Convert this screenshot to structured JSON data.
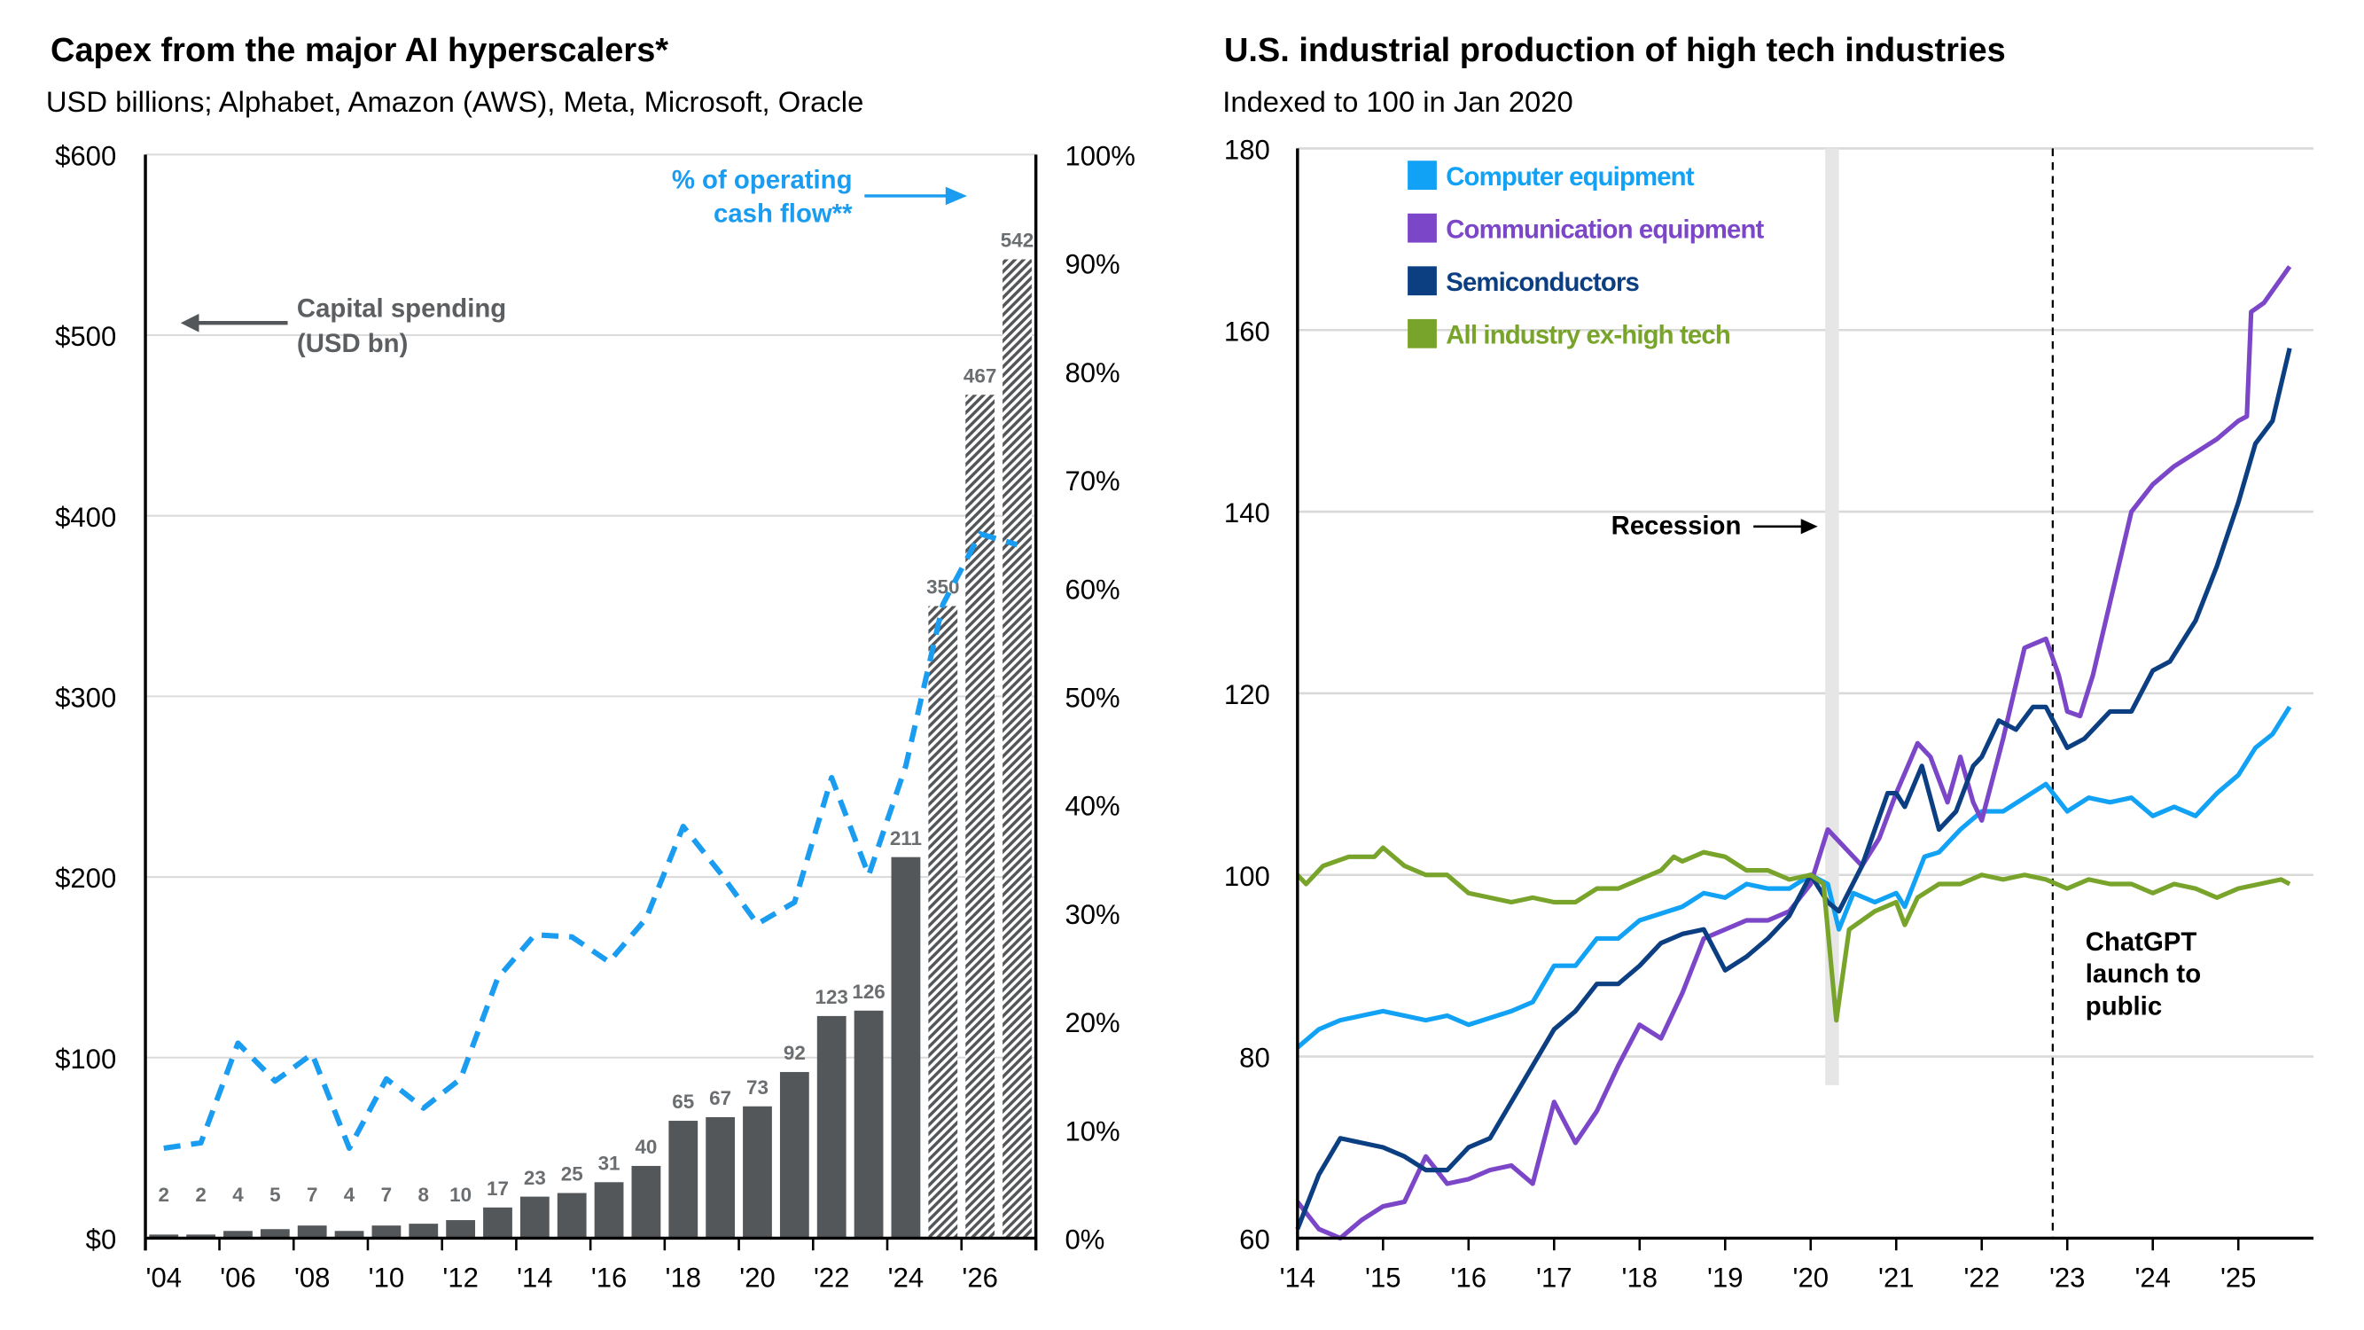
{
  "chart_data": [
    {
      "type": "bar",
      "title": "Capex from the major AI hyperscalers*",
      "subtitle": "USD billions; Alphabet, Amazon (AWS), Meta, Microsoft, Oracle",
      "categories": [
        2004,
        2005,
        2006,
        2007,
        2008,
        2009,
        2010,
        2011,
        2012,
        2013,
        2014,
        2015,
        2016,
        2017,
        2018,
        2019,
        2020,
        2021,
        2022,
        2023,
        2024,
        2025,
        2026,
        2027
      ],
      "x_tick_labels": [
        "'04",
        "'06",
        "'08",
        "'10",
        "'12",
        "'14",
        "'16",
        "'18",
        "'20",
        "'22",
        "'24",
        "'26"
      ],
      "series": [
        {
          "name": "Capital spending (USD bn)",
          "axis": "left",
          "type": "bar",
          "values": [
            2,
            2,
            4,
            5,
            7,
            4,
            7,
            8,
            10,
            17,
            23,
            25,
            31,
            40,
            65,
            67,
            73,
            92,
            123,
            126,
            211,
            350,
            467,
            542
          ],
          "hatched_from": 2025,
          "color": "#54575a"
        },
        {
          "name": "% of operating cash flow**",
          "axis": "right",
          "type": "line",
          "style": "dashed",
          "color": "#1a9cf0",
          "values": [
            8.3,
            8.8,
            18,
            14.5,
            17,
            8.3,
            14.7,
            12,
            14.7,
            24,
            28,
            27.8,
            25.5,
            29.5,
            38,
            33.7,
            29,
            31,
            42.5,
            33.5,
            43.6,
            58.5,
            65,
            64
          ]
        }
      ],
      "ylim_left": [
        0,
        600
      ],
      "y_ticks_left": [
        "$0",
        "$100",
        "$200",
        "$300",
        "$400",
        "$500",
        "$600"
      ],
      "ylim_right": [
        0,
        100
      ],
      "y_ticks_right": [
        "0%",
        "10%",
        "20%",
        "30%",
        "40%",
        "50%",
        "60%",
        "70%",
        "80%",
        "90%",
        "100%"
      ],
      "annotations": {
        "left_arrow_label_1": "Capital spending",
        "left_arrow_label_2": "(USD bn)",
        "right_arrow_label_1": "% of operating",
        "right_arrow_label_2": "cash flow**"
      },
      "grid": "horizontal"
    },
    {
      "type": "line",
      "title": "U.S. industrial production of high tech industries",
      "subtitle": "Indexed to 100 in Jan 2020",
      "ylim": [
        60,
        180
      ],
      "y_ticks": [
        "60",
        "80",
        "100",
        "120",
        "140",
        "160",
        "180"
      ],
      "x_range": [
        2014,
        2025.85
      ],
      "x_tick_labels": [
        "'14",
        "'15",
        "'16",
        "'17",
        "'18",
        "'19",
        "'20",
        "'21",
        "'22",
        "'23",
        "'24",
        "'25"
      ],
      "legend_placement": "top-left",
      "grid": "horizontal",
      "recession": [
        2020.17,
        2020.33
      ],
      "recession_label": "Recession",
      "event_line": 2022.83,
      "event_label": [
        "ChatGPT",
        "launch to",
        "public"
      ],
      "series": [
        {
          "name": "Computer equipment",
          "color": "#12a2f5",
          "x": [
            2014,
            2014.25,
            2014.5,
            2014.75,
            2015,
            2015.5,
            2015.75,
            2016,
            2016.5,
            2016.75,
            2017,
            2017.25,
            2017.5,
            2017.75,
            2018,
            2018.5,
            2018.75,
            2019,
            2019.25,
            2019.5,
            2019.75,
            2020,
            2020.2,
            2020.33,
            2020.5,
            2020.75,
            2021,
            2021.1,
            2021.33,
            2021.5,
            2021.75,
            2022,
            2022.25,
            2022.5,
            2022.75,
            2023,
            2023.25,
            2023.5,
            2023.75,
            2024,
            2024.25,
            2024.5,
            2024.75,
            2025,
            2025.2,
            2025.4,
            2025.6
          ],
          "y": [
            81,
            83,
            84,
            84.5,
            85,
            84,
            84.5,
            83.5,
            85,
            86,
            90,
            90,
            93,
            93,
            95,
            96.5,
            98,
            97.5,
            99,
            98.5,
            98.5,
            100,
            99,
            94,
            98,
            97,
            98,
            96.5,
            102,
            102.5,
            105,
            107,
            107,
            108.5,
            110,
            107,
            108.5,
            108,
            108.5,
            106.5,
            107.5,
            106.5,
            109,
            111,
            114,
            115.5,
            118.5
          ]
        },
        {
          "name": "Communication equipment",
          "color": "#7b46c8",
          "x": [
            2014,
            2014.25,
            2014.5,
            2014.75,
            2015,
            2015.25,
            2015.5,
            2015.75,
            2016,
            2016.25,
            2016.5,
            2016.75,
            2017,
            2017.25,
            2017.5,
            2017.75,
            2018,
            2018.25,
            2018.5,
            2018.75,
            2019,
            2019.25,
            2019.5,
            2019.75,
            2020,
            2020.2,
            2020.4,
            2020.6,
            2020.8,
            2021,
            2021.25,
            2021.4,
            2021.6,
            2021.75,
            2021.9,
            2022,
            2022.25,
            2022.5,
            2022.75,
            2022.9,
            2023,
            2023.15,
            2023.3,
            2023.5,
            2023.75,
            2024,
            2024.25,
            2024.5,
            2024.75,
            2025,
            2025.1,
            2025.15,
            2025.3,
            2025.6
          ],
          "y": [
            64,
            61,
            60,
            62,
            63.5,
            64,
            69,
            66,
            66.5,
            67.5,
            68,
            66,
            75,
            70.5,
            74,
            79,
            83.5,
            82,
            87,
            93,
            94,
            95,
            95,
            96,
            99,
            105,
            103,
            101,
            104,
            109,
            114.5,
            113,
            108,
            113,
            108,
            106,
            115,
            125,
            126,
            122,
            118,
            117.5,
            122,
            130,
            140,
            143,
            145,
            146.5,
            148,
            150,
            150.5,
            162,
            163,
            167
          ]
        },
        {
          "name": "Semiconductors",
          "color": "#0b3f82",
          "x": [
            2014,
            2014.25,
            2014.5,
            2014.75,
            2015,
            2015.25,
            2015.5,
            2015.75,
            2016,
            2016.25,
            2016.5,
            2016.75,
            2017,
            2017.25,
            2017.5,
            2017.75,
            2018,
            2018.25,
            2018.5,
            2018.75,
            2019,
            2019.25,
            2019.5,
            2019.75,
            2020,
            2020.2,
            2020.33,
            2020.6,
            2020.9,
            2021,
            2021.1,
            2021.3,
            2021.5,
            2021.7,
            2021.9,
            2022,
            2022.2,
            2022.4,
            2022.6,
            2022.75,
            2023,
            2023.2,
            2023.5,
            2023.75,
            2024,
            2024.2,
            2024.5,
            2024.75,
            2025,
            2025.2,
            2025.4,
            2025.6
          ],
          "y": [
            61,
            67,
            71,
            70.5,
            70,
            69,
            67.5,
            67.5,
            70,
            71,
            75,
            79,
            83,
            85,
            88,
            88,
            90,
            92.5,
            93.5,
            94,
            89.5,
            91,
            93,
            95.5,
            100,
            97,
            96,
            101,
            109,
            109,
            107.5,
            112,
            105,
            107,
            112,
            113,
            117,
            116,
            118.5,
            118.5,
            114,
            115,
            118,
            118,
            122.5,
            123.5,
            128,
            134,
            141,
            147.5,
            150,
            158
          ]
        },
        {
          "name": "All industry ex-high tech",
          "color": "#79a42b",
          "x": [
            2014,
            2014.1,
            2014.3,
            2014.6,
            2014.9,
            2015,
            2015.25,
            2015.5,
            2015.75,
            2016,
            2016.25,
            2016.5,
            2016.75,
            2017,
            2017.25,
            2017.5,
            2017.75,
            2018,
            2018.25,
            2018.4,
            2018.5,
            2018.75,
            2019,
            2019.25,
            2019.5,
            2019.75,
            2020,
            2020.15,
            2020.3,
            2020.45,
            2020.75,
            2021,
            2021.1,
            2021.25,
            2021.5,
            2021.75,
            2022,
            2022.25,
            2022.5,
            2022.75,
            2023,
            2023.25,
            2023.5,
            2023.75,
            2024,
            2024.25,
            2024.5,
            2024.75,
            2025,
            2025.25,
            2025.5,
            2025.6
          ],
          "y": [
            100,
            99,
            101,
            102,
            102,
            103,
            101,
            100,
            100,
            98,
            97.5,
            97,
            97.5,
            97,
            97,
            98.5,
            98.5,
            99.5,
            100.5,
            102,
            101.5,
            102.5,
            102,
            100.5,
            100.5,
            99.5,
            100,
            99,
            84,
            94,
            96,
            97,
            94.5,
            97.5,
            99,
            99,
            100,
            99.5,
            100,
            99.5,
            98.5,
            99.5,
            99,
            99,
            98,
            99,
            98.5,
            97.5,
            98.5,
            99,
            99.5,
            99
          ]
        }
      ]
    }
  ]
}
